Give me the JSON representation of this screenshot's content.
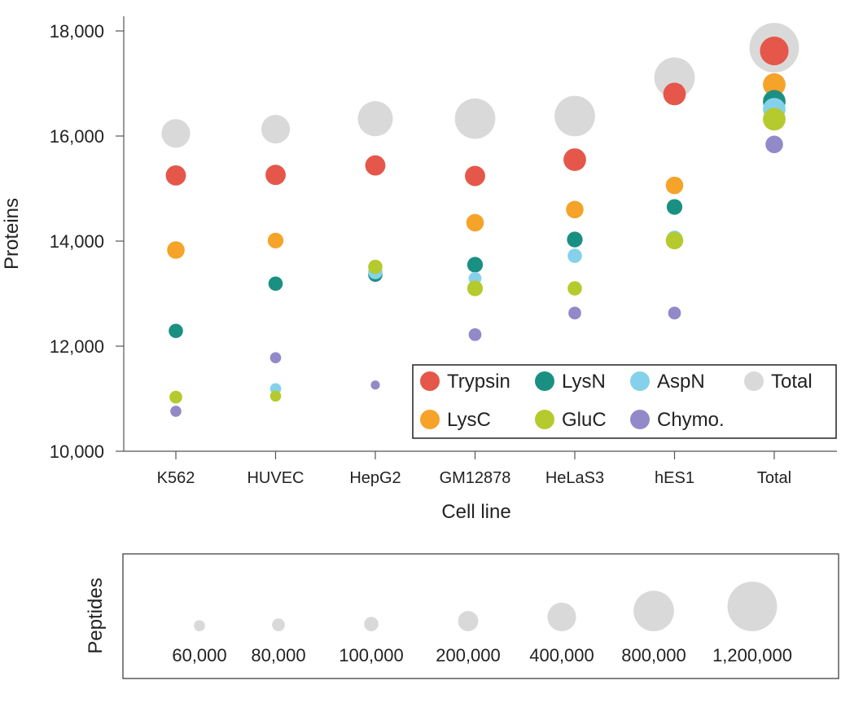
{
  "chart_data": {
    "type": "scatter",
    "xlabel": "Cell line",
    "ylabel": "Proteins",
    "categories": [
      "K562",
      "HUVEC",
      "HepG2",
      "GM12878",
      "HeLaS3",
      "hES1",
      "Total"
    ],
    "yticks": [
      "10,000",
      "12,000",
      "14,000",
      "16,000",
      "18,000"
    ],
    "ylim": [
      10000,
      18200
    ],
    "grid": false,
    "legend_position": "bottom-right",
    "size_encoding": "Peptides",
    "series": [
      {
        "name": "Total",
        "color": "#d9d9d9",
        "values": [
          16050,
          16130,
          16330,
          16330,
          16380,
          17110,
          17680
        ],
        "peptides": [
          400000,
          400000,
          600000,
          800000,
          800000,
          800000,
          1200000
        ]
      },
      {
        "name": "Trypsin",
        "color": "#e5574a",
        "values": [
          15250,
          15260,
          15440,
          15240,
          15550,
          16800,
          17620
        ],
        "peptides": [
          200000,
          200000,
          200000,
          200000,
          250000,
          250000,
          400000
        ]
      },
      {
        "name": "LysC",
        "color": "#f5a329",
        "values": [
          13830,
          14010,
          null,
          14350,
          14600,
          15060,
          16980
        ],
        "peptides": [
          150000,
          120000,
          null,
          150000,
          150000,
          150000,
          250000
        ]
      },
      {
        "name": "LysN",
        "color": "#1a9082",
        "values": [
          12290,
          13190,
          13360,
          13550,
          14030,
          14650,
          16660
        ],
        "peptides": [
          100000,
          100000,
          100000,
          120000,
          120000,
          120000,
          250000
        ]
      },
      {
        "name": "AspN",
        "color": "#85d1eb",
        "values": [
          11020,
          11190,
          13410,
          13290,
          13720,
          14050,
          16510
        ],
        "peptides": [
          60000,
          60000,
          100000,
          80000,
          100000,
          120000,
          250000
        ]
      },
      {
        "name": "GluC",
        "color": "#b5ca2d",
        "values": [
          11030,
          11050,
          13510,
          13100,
          13100,
          14010,
          16320
        ],
        "peptides": [
          80000,
          60000,
          100000,
          120000,
          100000,
          150000,
          250000
        ]
      },
      {
        "name": "Chymo.",
        "color": "#9189c8",
        "values": [
          10760,
          11780,
          11260,
          12220,
          12630,
          12630,
          15840
        ],
        "peptides": [
          60000,
          60000,
          40000,
          80000,
          80000,
          80000,
          150000
        ]
      }
    ],
    "legend_entries": [
      {
        "name": "Trypsin",
        "color": "#e5574a"
      },
      {
        "name": "LysN",
        "color": "#1a9082"
      },
      {
        "name": "AspN",
        "color": "#85d1eb"
      },
      {
        "name": "Total",
        "color": "#d9d9d9"
      },
      {
        "name": "LysC",
        "color": "#f5a329"
      },
      {
        "name": "GluC",
        "color": "#b5ca2d"
      },
      {
        "name": "Chymo.",
        "color": "#9189c8"
      }
    ],
    "size_legend": {
      "title": "Peptides",
      "labels": [
        "60,000",
        "80,000",
        "100,000",
        "200,000",
        "400,000",
        "800,000",
        "1,200,000"
      ],
      "values": [
        60000,
        80000,
        100000,
        200000,
        400000,
        800000,
        1200000
      ]
    }
  }
}
